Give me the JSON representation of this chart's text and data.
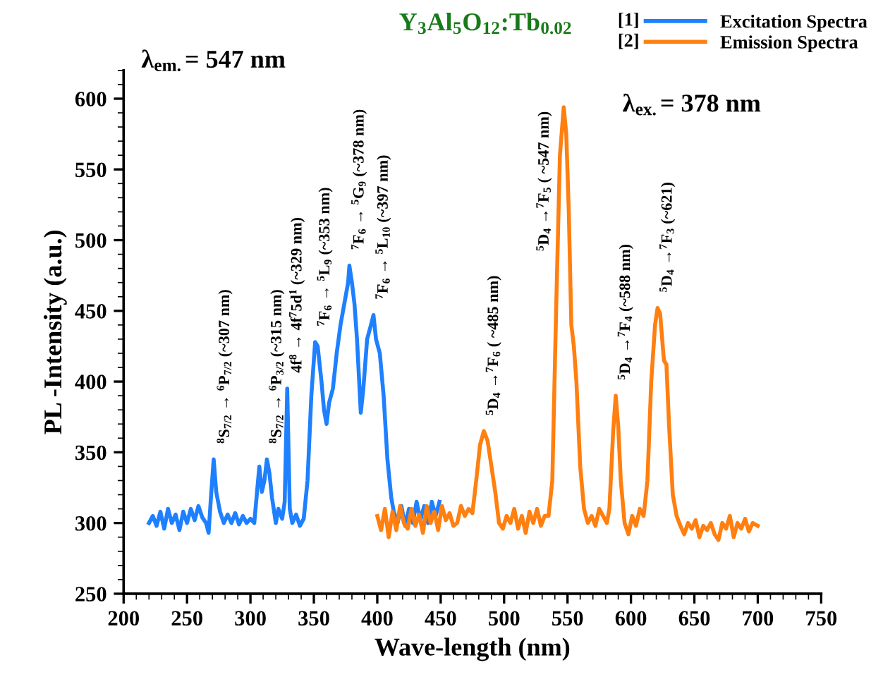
{
  "chart_data": {
    "type": "line",
    "title": "Y$_{3}$Al$_{5}$O$_{12}$:Tb$_{0.02}$",
    "xlabel": "Wave-length (nm)",
    "ylabel": "PL -Intensity (a.u.)",
    "xlim": [
      200,
      750
    ],
    "ylim": [
      250,
      620
    ],
    "xticks": [
      200,
      250,
      300,
      350,
      400,
      450,
      500,
      550,
      600,
      650,
      700,
      750
    ],
    "yticks": [
      250,
      300,
      350,
      400,
      450,
      500,
      550,
      600
    ],
    "legend": "top right",
    "series": [
      {
        "name": "Excitation Spectra",
        "color": "#1e80ff",
        "x": [
          220,
          223,
          226,
          229,
          232,
          235,
          238,
          241,
          244,
          247,
          250,
          253,
          256,
          259,
          262,
          265,
          267,
          269,
          271,
          273,
          276,
          279,
          282,
          285,
          288,
          291,
          294,
          297,
          300,
          303,
          305,
          307,
          309,
          311,
          313,
          315,
          317,
          320,
          322,
          325,
          327,
          329,
          331,
          333,
          336,
          339,
          342,
          345,
          348,
          351,
          353,
          356,
          358,
          360,
          362,
          365,
          368,
          371,
          374,
          377,
          378,
          380,
          382,
          384,
          387,
          389,
          392,
          395,
          397,
          399,
          402,
          405,
          408,
          411,
          413,
          416,
          419,
          422,
          425,
          428,
          431,
          434,
          437,
          440,
          443,
          446,
          449
        ],
        "values": [
          300,
          305,
          298,
          308,
          296,
          310,
          300,
          306,
          295,
          308,
          300,
          310,
          302,
          312,
          304,
          300,
          293,
          320,
          345,
          322,
          308,
          300,
          306,
          300,
          307,
          299,
          305,
          300,
          303,
          300,
          320,
          340,
          322,
          330,
          345,
          335,
          318,
          300,
          310,
          303,
          315,
          395,
          310,
          300,
          306,
          298,
          303,
          330,
          390,
          428,
          425,
          400,
          380,
          370,
          385,
          395,
          420,
          440,
          455,
          470,
          482,
          470,
          455,
          430,
          378,
          395,
          430,
          440,
          447,
          430,
          420,
          390,
          345,
          318,
          308,
          300,
          312,
          298,
          310,
          300,
          315,
          302,
          312,
          300,
          315,
          305,
          315
        ]
      },
      {
        "name": "Emission Spectra",
        "color": "#ff7f10",
        "x": [
          400,
          403,
          406,
          409,
          412,
          415,
          418,
          421,
          424,
          427,
          430,
          433,
          436,
          439,
          442,
          445,
          448,
          451,
          454,
          457,
          460,
          463,
          466,
          469,
          472,
          475,
          478,
          481,
          484,
          487,
          490,
          493,
          496,
          499,
          502,
          505,
          508,
          511,
          514,
          517,
          520,
          523,
          526,
          529,
          532,
          535,
          538,
          541,
          544,
          547,
          549,
          551,
          553,
          555,
          557,
          560,
          563,
          566,
          569,
          572,
          575,
          578,
          581,
          583,
          586,
          588,
          590,
          592,
          595,
          598,
          601,
          604,
          607,
          610,
          613,
          616,
          619,
          621,
          623,
          626,
          628,
          630,
          633,
          636,
          639,
          642,
          645,
          648,
          651,
          654,
          657,
          660,
          663,
          666,
          669,
          672,
          675,
          678,
          681,
          684,
          687,
          690,
          693,
          696,
          700
        ],
        "values": [
          305,
          295,
          310,
          290,
          308,
          295,
          312,
          300,
          296,
          310,
          298,
          306,
          293,
          312,
          300,
          308,
          295,
          312,
          302,
          307,
          298,
          300,
          312,
          305,
          310,
          307,
          330,
          355,
          365,
          358,
          340,
          322,
          300,
          296,
          305,
          300,
          310,
          296,
          305,
          293,
          308,
          300,
          310,
          298,
          305,
          305,
          330,
          450,
          560,
          594,
          575,
          520,
          440,
          425,
          400,
          340,
          310,
          300,
          305,
          298,
          310,
          305,
          300,
          310,
          365,
          390,
          368,
          330,
          300,
          292,
          305,
          298,
          310,
          305,
          330,
          400,
          440,
          452,
          448,
          415,
          412,
          370,
          320,
          305,
          298,
          292,
          300,
          296,
          302,
          290,
          298,
          295,
          300,
          292,
          288,
          300,
          296,
          305,
          290,
          300,
          296,
          303,
          294,
          300,
          298
        ]
      }
    ],
    "annotations": [
      "λ$_{em.}$= 547 nm",
      "λ$_{ex.}$= 378 nm",
      "[1]",
      "[2]",
      {
        "text": "$^{8}$S$_{7/2}$ → $^{6}$P$_{7/2}$ (~307 nm)",
        "x": 272,
        "y": 345
      },
      {
        "text": "$^{8}$S$_{7/2}$ → $^{6}$P$_{3/2}$ (~315 nm)",
        "x": 313,
        "y": 345
      },
      {
        "text": "4f$^{8}$ → 4f$^{7}$5d$^{1}$ (~329 nm)",
        "x": 329,
        "y": 395
      },
      {
        "text": "$^{7}$F$_{6}$ → $^{5}$L$_{9}$ (~353 nm)",
        "x": 351,
        "y": 428
      },
      {
        "text": "$^{7}$F$_{6}$ → $^{5}$G$_{9}$ (~378 nm)",
        "x": 378,
        "y": 482
      },
      {
        "text": "$^{7}$F$_{6}$ → $^{5}$L$_{10}$ (~397 nm)",
        "x": 397,
        "y": 447
      },
      {
        "text": "$^{5}$D$_{4}$ →$^{7}$F$_{6}$ ( ~485 nm)",
        "x": 484,
        "y": 365
      },
      {
        "text": "$^{5}$D$_{4}$ →$^{7}$F$_{5}$ ( ~547 nm)",
        "x": 547,
        "y": 594
      },
      {
        "text": "$^{5}$D$_{4}$ →$^{7}$F$_{4}$ (~588 nm)",
        "x": 588,
        "y": 390
      },
      {
        "text": "$^{5}$D$_{4}$ →$^{7}$F$_{3}$ (~621)",
        "x": 621,
        "y": 452
      }
    ]
  }
}
